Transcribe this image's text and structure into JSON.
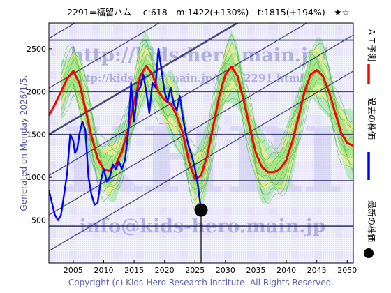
{
  "header": {
    "title": "2291=福留ハム　 c:618　m:1422(+130%)　t:1815(+194%)　★☆"
  },
  "side_left": "Generated on Monday 2026/1/5.",
  "side_right": {
    "ai_forecast": "ＡＩ予測",
    "past_price": "過去の株価",
    "latest_price": "最新の株価"
  },
  "watermarks": {
    "url_main": "http://kids-hero.main.jp/",
    "url_sub": "http://kids-hero.main.jp/code2291.html",
    "email": "info@kids-hero.main.jp",
    "big": "KHRI"
  },
  "footer": {
    "copyright": "Copyright (c) Kids-Hero Research Institute. All Rights Reserved."
  },
  "colors": {
    "ai_forecast": "#ff0000",
    "past_price": "#0000ff",
    "latest_price": "#000000",
    "band_green": "#7ee07e",
    "band_yellow": "#fff07a",
    "trend_lines": "#2a2a66"
  },
  "chart_data": {
    "type": "line",
    "title": "2291=福留ハム",
    "xlim": [
      2001,
      2051
    ],
    "ylim": [
      0,
      2800
    ],
    "x_ticks": [
      2005,
      2010,
      2015,
      2020,
      2025,
      2030,
      2035,
      2040,
      2045,
      2050
    ],
    "y_ticks": [
      500,
      1000,
      1500,
      2000,
      2500
    ],
    "horizontal_levels": [
      430,
      960,
      1500,
      2000,
      2600
    ],
    "latest": {
      "x": 2026.0,
      "y": 618
    },
    "series": [
      {
        "name": "ＡＩ予測",
        "color": "#ff0000",
        "x": [
          2001,
          2002,
          2003,
          2004,
          2005,
          2006,
          2007,
          2008,
          2009,
          2010,
          2011,
          2012,
          2013,
          2014,
          2015,
          2016,
          2017,
          2018,
          2019,
          2020,
          2021,
          2022,
          2023,
          2024,
          2025,
          2026,
          2027,
          2028,
          2029,
          2030,
          2031,
          2032,
          2033,
          2034,
          2035,
          2036,
          2037,
          2038,
          2039,
          2040,
          2041,
          2042,
          2043,
          2044,
          2045,
          2046,
          2047,
          2048,
          2049,
          2050,
          2051
        ],
        "values": [
          1720,
          1850,
          2000,
          2150,
          2240,
          2100,
          1800,
          1480,
          1220,
          1090,
          1080,
          1150,
          1300,
          1550,
          1880,
          2180,
          2300,
          2200,
          2000,
          1900,
          1860,
          1720,
          1520,
          1180,
          980,
          1020,
          1250,
          1600,
          1950,
          2200,
          2290,
          2180,
          1900,
          1580,
          1280,
          1120,
          1060,
          1060,
          1100,
          1200,
          1420,
          1700,
          2000,
          2200,
          2250,
          2180,
          2000,
          1760,
          1520,
          1400,
          1370
        ]
      },
      {
        "name": "過去の株価",
        "color": "#0000ff",
        "x": [
          2001,
          2001.5,
          2002,
          2002.5,
          2003,
          2003.5,
          2004,
          2004.5,
          2005,
          2005.3,
          2005.7,
          2006,
          2006.5,
          2007,
          2007.5,
          2008,
          2008.5,
          2009,
          2009.5,
          2010,
          2010.5,
          2011,
          2011.5,
          2012,
          2012.5,
          2013,
          2013.5,
          2014,
          2014.5,
          2015,
          2015.5,
          2016,
          2016.5,
          2017,
          2017.5,
          2018,
          2018.5,
          2019,
          2019.5,
          2020,
          2020.5,
          2021,
          2021.5,
          2022,
          2022.5,
          2023,
          2023.5,
          2024,
          2024.5,
          2025,
          2025.5,
          2026
        ],
        "values": [
          850,
          700,
          560,
          500,
          560,
          800,
          1050,
          1500,
          1430,
          1280,
          1350,
          1500,
          1650,
          1550,
          1000,
          800,
          680,
          700,
          950,
          1100,
          950,
          1000,
          1150,
          1100,
          1180,
          1100,
          1200,
          1500,
          2100,
          1650,
          2000,
          2050,
          2200,
          2000,
          1750,
          2100,
          2050,
          2500,
          2250,
          2000,
          1880,
          2050,
          1850,
          1780,
          1950,
          1700,
          1500,
          1350,
          1250,
          1100,
          900,
          618
        ]
      }
    ]
  }
}
